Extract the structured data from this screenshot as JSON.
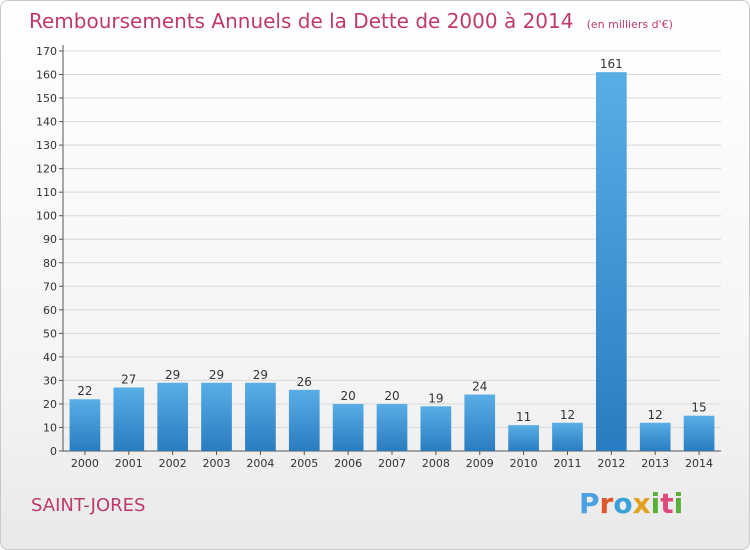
{
  "chart_data": {
    "type": "bar",
    "title": "Remboursements Annuels de la Dette de 2000 à 2014",
    "unit_label": "(en milliers d'€)",
    "categories": [
      "2000",
      "2001",
      "2002",
      "2003",
      "2004",
      "2005",
      "2006",
      "2007",
      "2008",
      "2009",
      "2010",
      "2011",
      "2012",
      "2013",
      "2014"
    ],
    "values": [
      22,
      27,
      29,
      29,
      29,
      26,
      20,
      20,
      19,
      24,
      11,
      12,
      161,
      12,
      15
    ],
    "ylim": [
      0,
      170
    ],
    "yticks": [
      0,
      10,
      20,
      30,
      40,
      50,
      60,
      70,
      80,
      90,
      100,
      110,
      120,
      130,
      140,
      150,
      160,
      170
    ],
    "grid": true,
    "legend": "none",
    "bar_color_top": "#5aaee6",
    "bar_color_bottom": "#2a7cc0"
  },
  "footer": {
    "commune": "SAINT-JORES",
    "logo": [
      "P",
      "r",
      "o",
      "x",
      "i",
      "t",
      "i"
    ],
    "logo_colors": [
      "#4aa0e0",
      "#e0552a",
      "#3aa0d8",
      "#e0a020",
      "#58b038",
      "#e04a7a",
      "#58b038"
    ]
  }
}
